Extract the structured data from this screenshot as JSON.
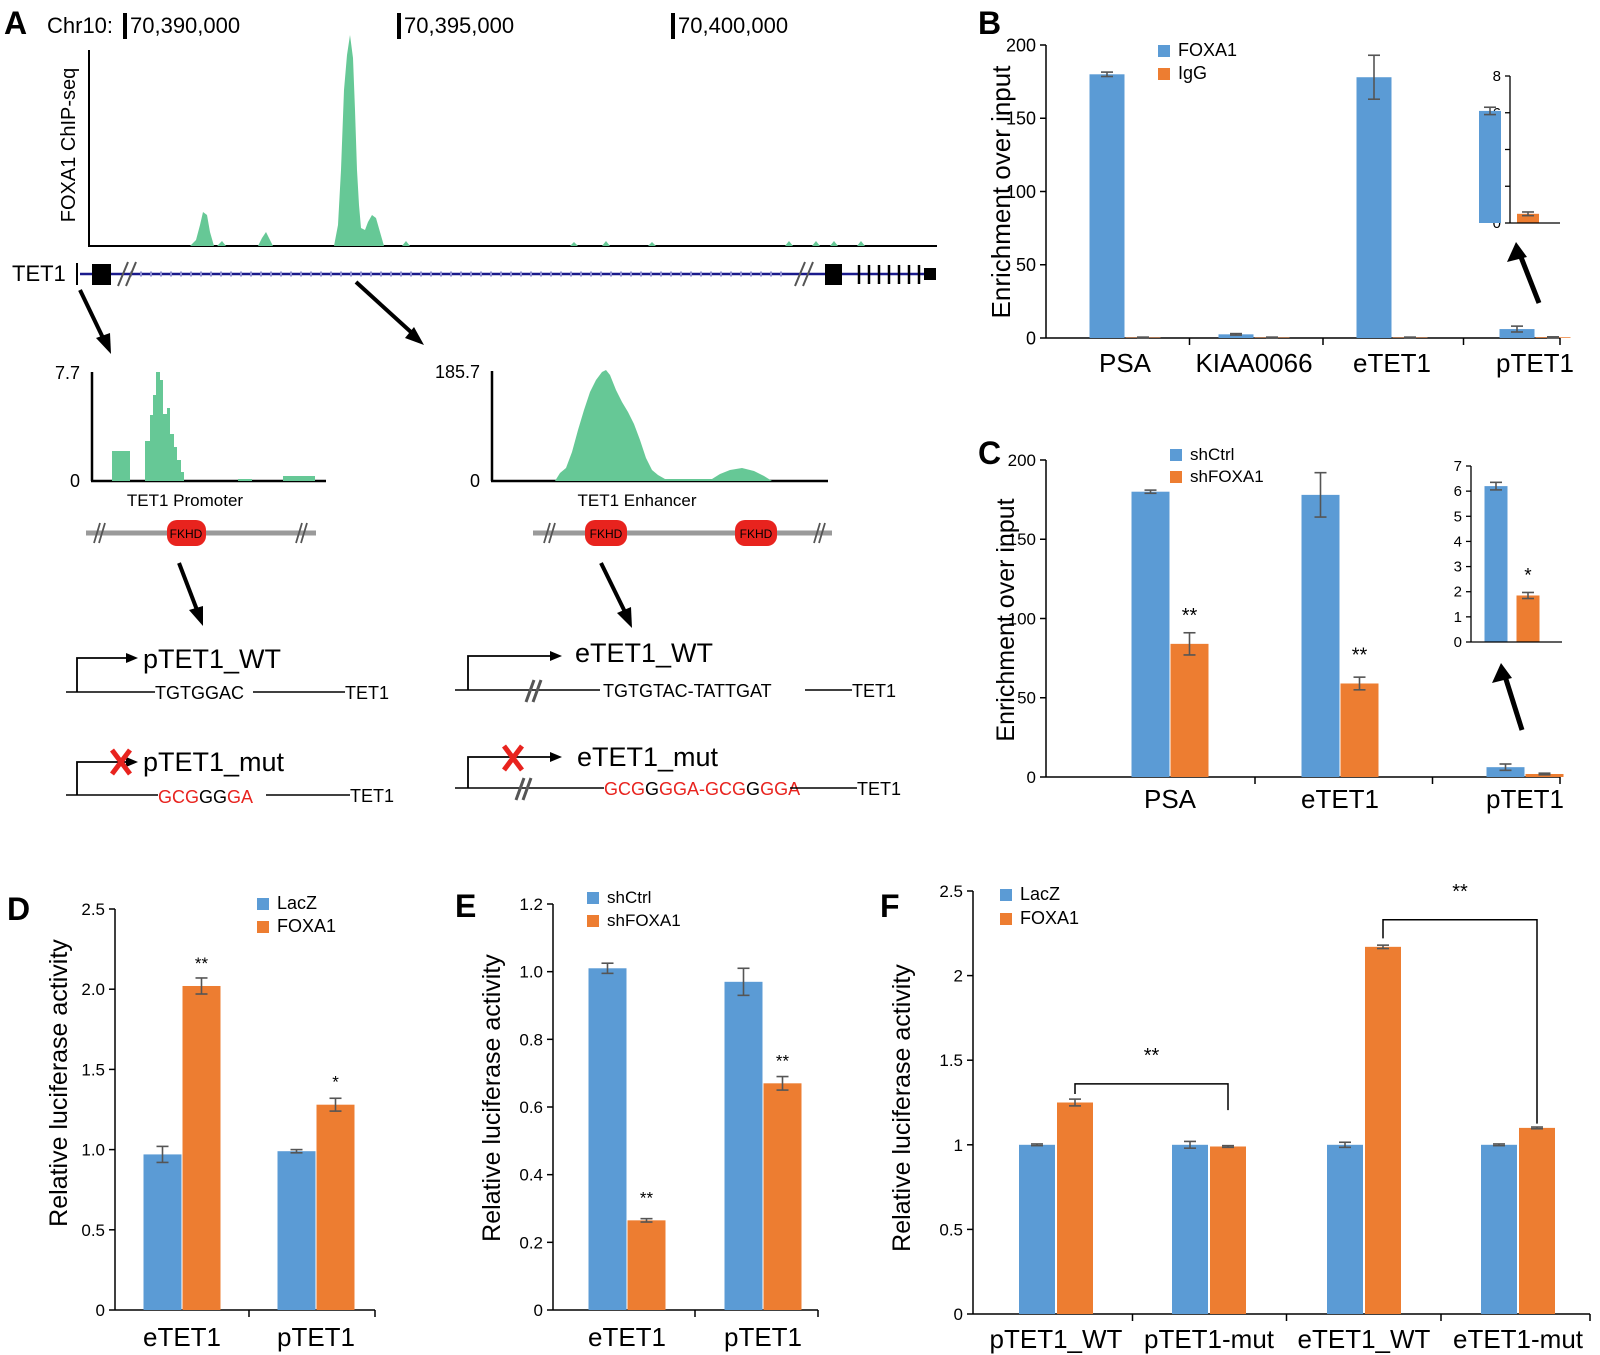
{
  "colors": {
    "blue": "#5B9BD5",
    "orange": "#ED7D31",
    "green": "#66C896",
    "red": "#E8231E",
    "navy": "#1a1a8c",
    "gray": "#9a9a9a"
  },
  "panel_a": {
    "letter": "A",
    "chr_label": "Chr10:",
    "coords": [
      "70,390,000",
      "70,395,000",
      "70,400,000"
    ],
    "track_ylabel": "FOXA1 ChIP-seq",
    "gene_label": "TET1",
    "promoter": {
      "max": "7.7",
      "min": "0",
      "caption": "TET1 Promoter",
      "motif": "FKHD"
    },
    "enhancer": {
      "max": "185.7",
      "min": "0",
      "caption": "TET1 Enhancer",
      "motif": "FKHD"
    },
    "constructs": {
      "p_wt": {
        "name": "pTET1_WT",
        "seq": "TGTGGAC",
        "gene": "TET1"
      },
      "e_wt": {
        "name": "eTET1_WT",
        "seq": "TGTGTAC-TATTGAT",
        "gene": "TET1"
      },
      "p_mut": {
        "name": "pTET1_mut",
        "seq_red1": "GCG",
        "seq_black1": "GG",
        "seq_red2": "GA",
        "gene": "TET1"
      },
      "e_mut": {
        "name": "eTET1_mut",
        "seq_red1": "GCG",
        "seq_black1": "G",
        "seq_red2": "GGA-GCG",
        "seq_black2": "G",
        "seq_red3": "GGA",
        "gene": "TET1"
      }
    }
  },
  "chart_data": [
    {
      "panel": "B",
      "type": "bar",
      "ylabel": "Enrichment over input",
      "ylim": [
        0,
        200
      ],
      "yticks": [
        "0",
        "50",
        "100",
        "150",
        "200"
      ],
      "categories": [
        "PSA",
        "KIAA0066",
        "eTET1",
        "pTET1"
      ],
      "series": [
        {
          "name": "FOXA1",
          "values": [
            180,
            2.5,
            178,
            6.1
          ]
        },
        {
          "name": "IgG",
          "values": [
            0.3,
            0.3,
            0.3,
            0.5
          ]
        }
      ],
      "inset": {
        "ylim": [
          0,
          8
        ],
        "yticks": [
          "0",
          "2",
          "4",
          "6",
          "8"
        ],
        "values": [
          6.1,
          0.5
        ]
      }
    },
    {
      "panel": "C",
      "type": "bar",
      "ylabel": "Enrichment over input",
      "ylim": [
        0,
        200
      ],
      "yticks": [
        "0",
        "50",
        "100",
        "150",
        "200"
      ],
      "categories": [
        "PSA",
        "eTET1",
        "pTET1"
      ],
      "series": [
        {
          "name": "shCtrl",
          "values": [
            180,
            178,
            6.2
          ]
        },
        {
          "name": "shFOXA1",
          "values": [
            84,
            59,
            1.9
          ]
        }
      ],
      "significance": [
        "**",
        "**",
        ""
      ],
      "inset": {
        "ylim": [
          0,
          7
        ],
        "yticks": [
          "0",
          "1",
          "2",
          "3",
          "4",
          "5",
          "6",
          "7"
        ],
        "values": [
          6.2,
          1.85
        ],
        "significance": "*"
      }
    },
    {
      "panel": "D",
      "type": "bar",
      "ylabel": "Relative luciferase activity",
      "ylim": [
        0,
        2.5
      ],
      "yticks": [
        "0",
        "0.5",
        "1.0",
        "1.5",
        "2.0",
        "2.5"
      ],
      "categories": [
        "eTET1",
        "pTET1"
      ],
      "series": [
        {
          "name": "LacZ",
          "values": [
            0.97,
            0.99
          ]
        },
        {
          "name": "FOXA1",
          "values": [
            2.02,
            1.28
          ]
        }
      ],
      "significance": [
        "**",
        "*"
      ]
    },
    {
      "panel": "E",
      "type": "bar",
      "ylabel": "Relative luciferase activity",
      "ylim": [
        0,
        1.2
      ],
      "yticks": [
        "0",
        "0.2",
        "0.4",
        "0.6",
        "0.8",
        "1.0",
        "1.2"
      ],
      "categories": [
        "eTET1",
        "pTET1"
      ],
      "series": [
        {
          "name": "shCtrl",
          "values": [
            1.01,
            0.97
          ]
        },
        {
          "name": "shFOXA1",
          "values": [
            0.265,
            0.67
          ]
        }
      ],
      "significance": [
        "**",
        "**"
      ]
    },
    {
      "panel": "F",
      "type": "bar",
      "ylabel": "Relative luciferase activity",
      "ylim": [
        0,
        2.5
      ],
      "yticks": [
        "0",
        "0.5",
        "1",
        "1.5",
        "2",
        "2.5"
      ],
      "categories": [
        "pTET1_WT",
        "pTET1-mut",
        "eTET1_WT",
        "eTET1-mut"
      ],
      "series": [
        {
          "name": "LacZ",
          "values": [
            1.0,
            1.0,
            1.0,
            1.0
          ]
        },
        {
          "name": "FOXA1",
          "values": [
            1.25,
            0.99,
            2.17,
            1.1
          ]
        }
      ],
      "brackets": [
        "**",
        "**"
      ]
    }
  ]
}
